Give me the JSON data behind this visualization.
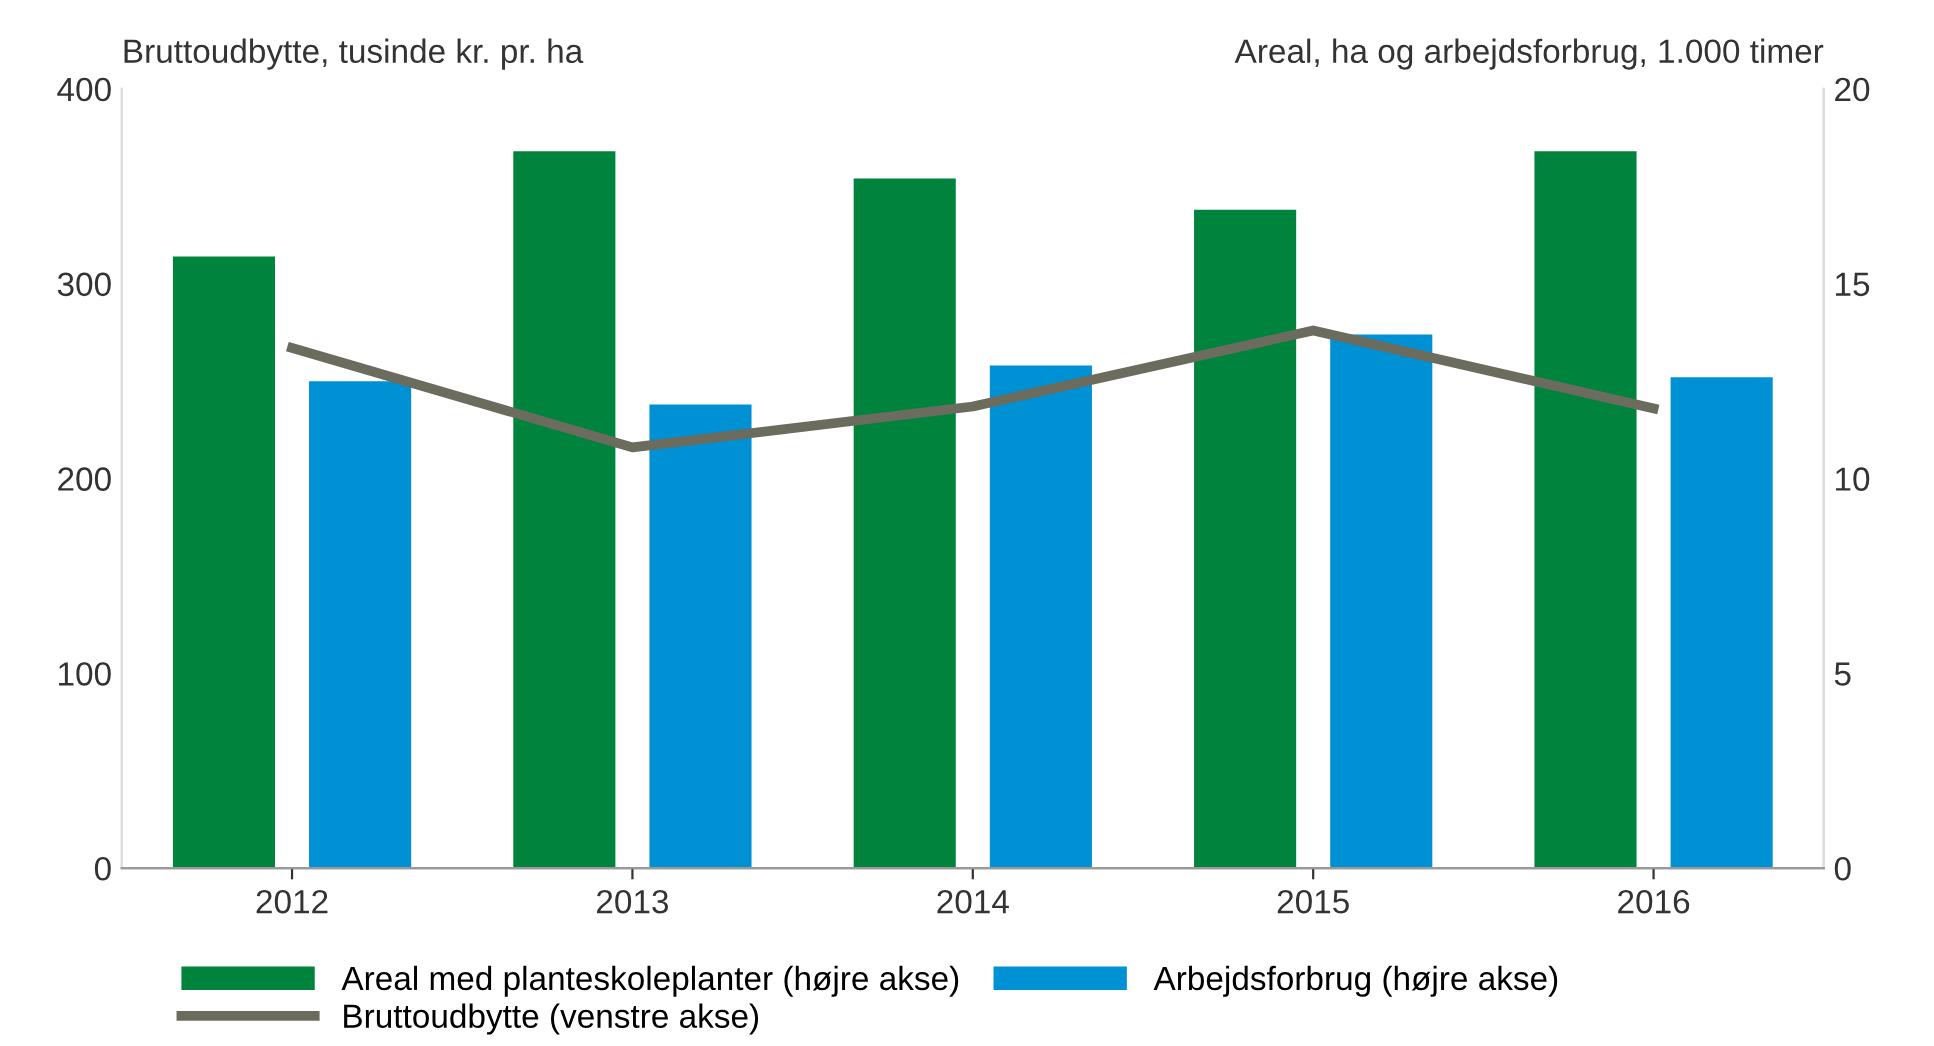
{
  "chart_data": {
    "type": "bar",
    "ylabel": "Bruttoudbytte, tusinde kr. pr. ha",
    "y2label": "Areal, ha og arbejdsforbrug, 1.000 timer",
    "categories": [
      "2012",
      "2013",
      "2014",
      "2015",
      "2016"
    ],
    "series": [
      {
        "name": "Areal med planteskoleplanter (højre akse)",
        "color": "#00843d",
        "axis": "y2",
        "values": [
          15.7,
          18.4,
          17.7,
          16.9,
          18.4
        ]
      },
      {
        "name": "Arbejdsforbrug (højre akse)",
        "color": "#0090d4",
        "axis": "y2",
        "values": [
          12.5,
          11.9,
          12.9,
          13.7,
          12.6
        ]
      },
      {
        "name": "Bruttoudbytte (venstre akse)",
        "color": "#6b6b5e",
        "type": "line",
        "values": [
          267,
          216,
          237,
          276,
          236
        ]
      }
    ],
    "ylim": [
      0,
      400
    ],
    "yticks": [
      0,
      100,
      200,
      300,
      400
    ],
    "y2lim": [
      0,
      20
    ],
    "y2ticks": [
      0,
      5,
      10,
      15,
      20
    ],
    "grid": false,
    "legend": "bottom",
    "marker": "none",
    "line_style": "solid"
  }
}
